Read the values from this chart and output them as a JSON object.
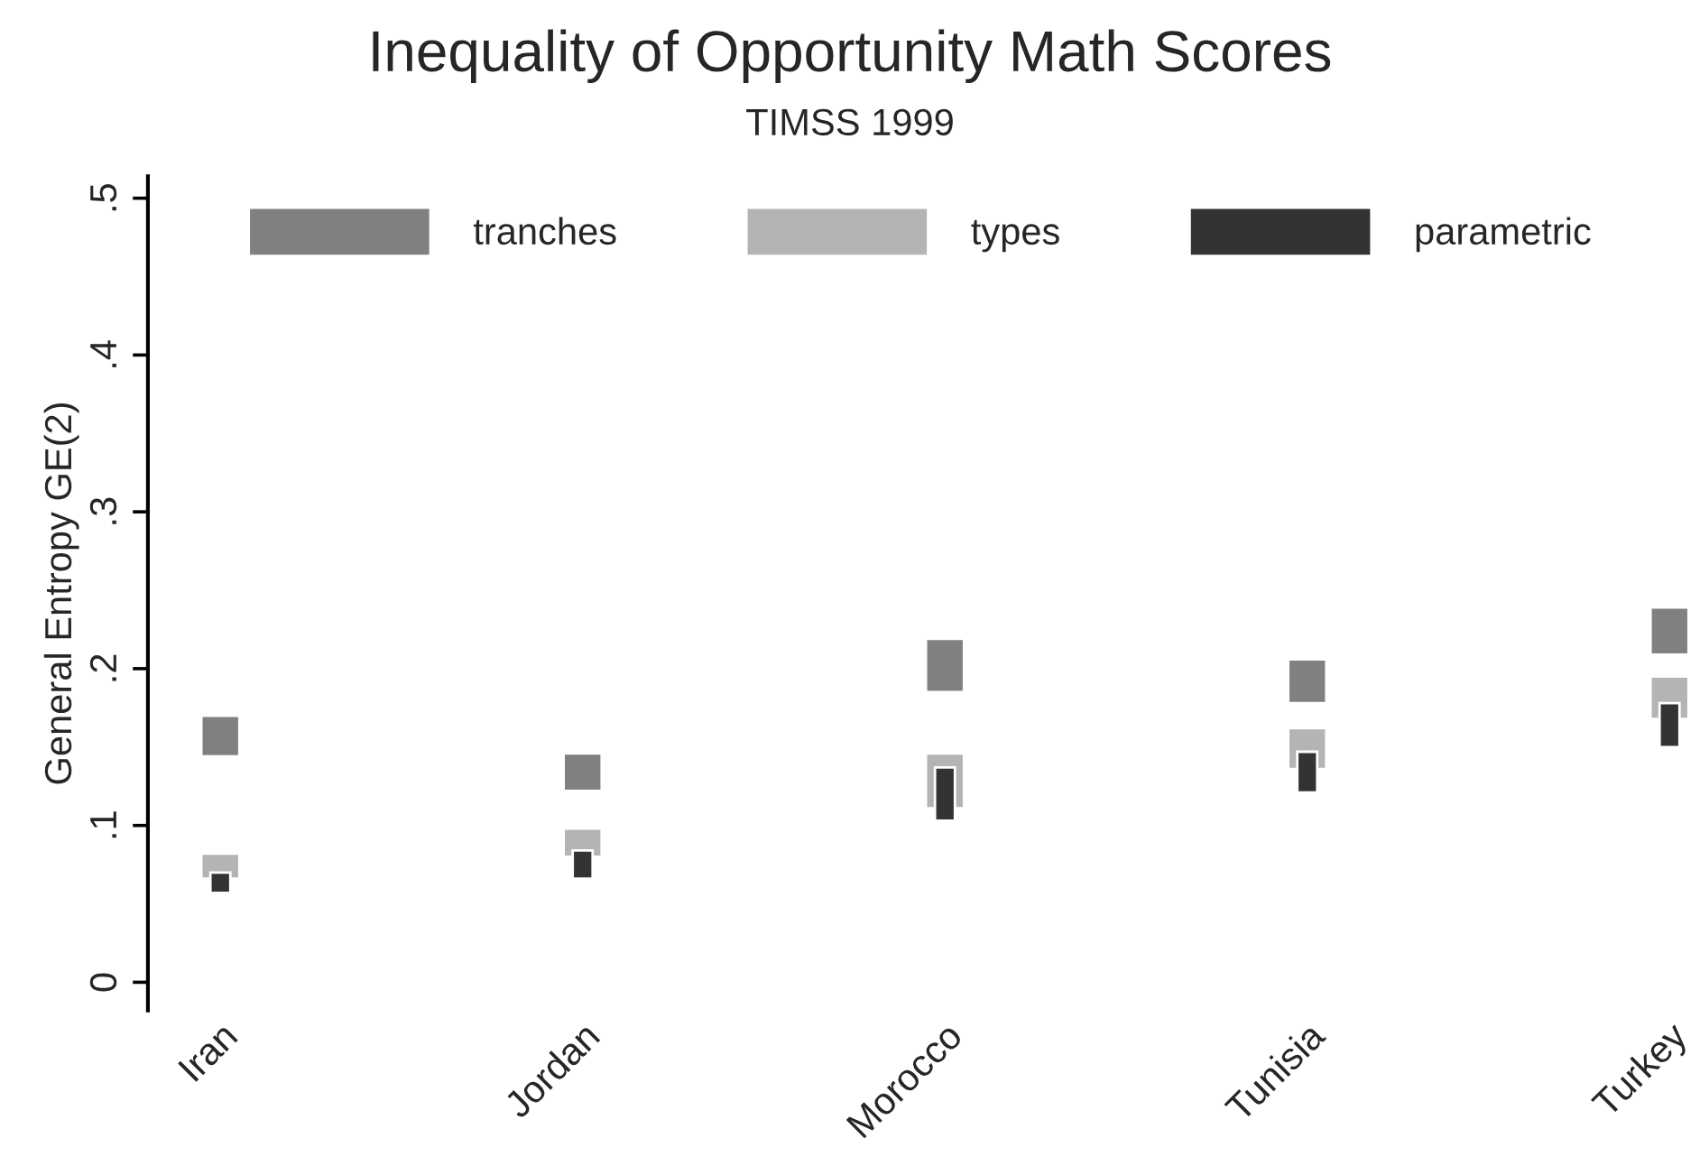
{
  "chart_data": {
    "type": "bar",
    "title": "Inequality of Opportunity Math Scores",
    "subtitle": "TIMSS 1999",
    "ylabel": "General Entropy GE(2)",
    "categories": [
      "Iran",
      "Jordan",
      "Morocco",
      "Tunisia",
      "Turkey"
    ],
    "series": [
      {
        "name": "tranches",
        "color": "#808080",
        "base": [
          0.144,
          0.122,
          0.185,
          0.178,
          0.209
        ],
        "values": [
          0.026,
          0.024,
          0.034,
          0.028,
          0.03
        ]
      },
      {
        "name": "types",
        "color": "#b4b4b4",
        "base": [
          0.066,
          0.08,
          0.111,
          0.136,
          0.168
        ],
        "values": [
          0.016,
          0.018,
          0.035,
          0.026,
          0.027
        ]
      },
      {
        "name": "parametric",
        "color": "#333333",
        "base": [
          0.057,
          0.066,
          0.103,
          0.121,
          0.15
        ],
        "values": [
          0.013,
          0.018,
          0.034,
          0.026,
          0.028
        ]
      }
    ],
    "ylim": [
      -0.018,
      0.514
    ],
    "yticks": [
      {
        "value": 0,
        "label": "0"
      },
      {
        "value": 0.1,
        "label": ".1"
      },
      {
        "value": 0.2,
        "label": ".2"
      },
      {
        "value": 0.3,
        "label": ".3"
      },
      {
        "value": 0.4,
        "label": ".4"
      },
      {
        "value": 0.5,
        "label": ".5"
      }
    ],
    "grid": false,
    "legend": "top"
  }
}
